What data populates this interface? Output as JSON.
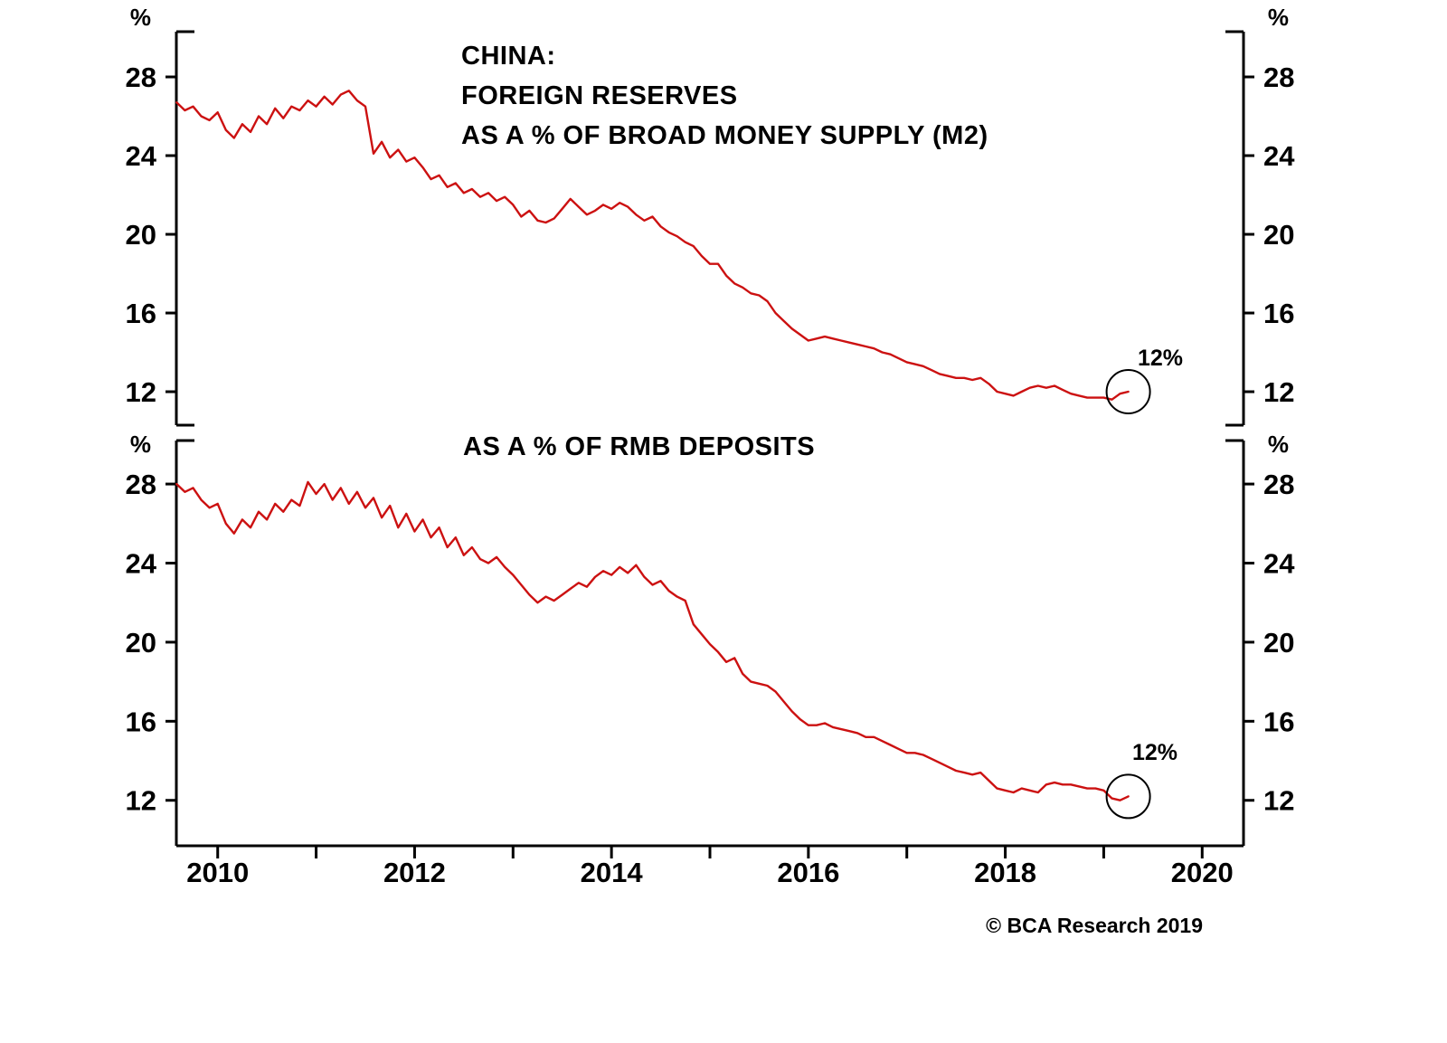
{
  "page": {
    "background": "#ffffff"
  },
  "footer": {
    "copyright": "© BCA Research 2019"
  },
  "chart_data": [
    {
      "type": "line",
      "panel": "top",
      "title_lines": [
        "CHINA:",
        "FOREIGN RESERVES",
        "AS A % OF BROAD MONEY SUPPLY (M2)"
      ],
      "unit": "%",
      "line_color": "#cc1111",
      "ylim": [
        10.3,
        30.3
      ],
      "yticks": [
        12,
        16,
        20,
        24,
        28
      ],
      "xlim": [
        2009.58,
        2020.42
      ],
      "xticks": [
        2010,
        2012,
        2014,
        2016,
        2018,
        2020
      ],
      "grid": false,
      "annotation": {
        "text": "12%"
      },
      "end_circle": {
        "x": 2019.25,
        "y": 12.0
      },
      "x_start": 2009.583,
      "x_step": 0.083333,
      "values": [
        26.7,
        26.3,
        26.5,
        26.0,
        25.8,
        26.2,
        25.3,
        24.9,
        25.6,
        25.2,
        26.0,
        25.6,
        26.4,
        25.9,
        26.5,
        26.3,
        26.8,
        26.5,
        27.0,
        26.6,
        27.1,
        27.3,
        26.8,
        26.5,
        24.1,
        24.7,
        23.9,
        24.3,
        23.7,
        23.9,
        23.4,
        22.8,
        23.0,
        22.4,
        22.6,
        22.1,
        22.3,
        21.9,
        22.1,
        21.7,
        21.9,
        21.5,
        20.9,
        21.2,
        20.7,
        20.6,
        20.8,
        21.3,
        21.8,
        21.4,
        21.0,
        21.2,
        21.5,
        21.3,
        21.6,
        21.4,
        21.0,
        20.7,
        20.9,
        20.4,
        20.1,
        19.9,
        19.6,
        19.4,
        18.9,
        18.5,
        18.5,
        17.9,
        17.5,
        17.3,
        17.0,
        16.9,
        16.6,
        16.0,
        15.6,
        15.2,
        14.9,
        14.6,
        14.7,
        14.8,
        14.7,
        14.6,
        14.5,
        14.4,
        14.3,
        14.2,
        14.0,
        13.9,
        13.7,
        13.5,
        13.4,
        13.3,
        13.1,
        12.9,
        12.8,
        12.7,
        12.7,
        12.6,
        12.7,
        12.4,
        12.0,
        11.9,
        11.8,
        12.0,
        12.2,
        12.3,
        12.2,
        12.3,
        12.1,
        11.9,
        11.8,
        11.7,
        11.7,
        11.7,
        11.6,
        11.9,
        12.0
      ]
    },
    {
      "type": "line",
      "panel": "bottom",
      "title_lines": [
        "AS A % OF RMB DEPOSITS"
      ],
      "unit": "%",
      "line_color": "#cc1111",
      "ylim": [
        9.7,
        30.2
      ],
      "yticks": [
        12,
        16,
        20,
        24,
        28
      ],
      "xlim": [
        2009.58,
        2020.42
      ],
      "xticks": [
        2010,
        2012,
        2014,
        2016,
        2018,
        2020
      ],
      "grid": false,
      "annotation": {
        "text": "12%"
      },
      "end_circle": {
        "x": 2019.25,
        "y": 12.2
      },
      "x_start": 2009.583,
      "x_step": 0.083333,
      "values": [
        28.0,
        27.6,
        27.8,
        27.2,
        26.8,
        27.0,
        26.0,
        25.5,
        26.2,
        25.8,
        26.6,
        26.2,
        27.0,
        26.6,
        27.2,
        26.9,
        28.1,
        27.5,
        28.0,
        27.2,
        27.8,
        27.0,
        27.6,
        26.8,
        27.3,
        26.3,
        26.9,
        25.8,
        26.5,
        25.6,
        26.2,
        25.3,
        25.8,
        24.8,
        25.3,
        24.4,
        24.8,
        24.2,
        24.0,
        24.3,
        23.8,
        23.4,
        22.9,
        22.4,
        22.0,
        22.3,
        22.1,
        22.4,
        22.7,
        23.0,
        22.8,
        23.3,
        23.6,
        23.4,
        23.8,
        23.5,
        23.9,
        23.3,
        22.9,
        23.1,
        22.6,
        22.3,
        22.1,
        20.9,
        20.4,
        19.9,
        19.5,
        19.0,
        19.2,
        18.4,
        18.0,
        17.9,
        17.8,
        17.5,
        17.0,
        16.5,
        16.1,
        15.8,
        15.8,
        15.9,
        15.7,
        15.6,
        15.5,
        15.4,
        15.2,
        15.2,
        15.0,
        14.8,
        14.6,
        14.4,
        14.4,
        14.3,
        14.1,
        13.9,
        13.7,
        13.5,
        13.4,
        13.3,
        13.4,
        13.0,
        12.6,
        12.5,
        12.4,
        12.6,
        12.5,
        12.4,
        12.8,
        12.9,
        12.8,
        12.8,
        12.7,
        12.6,
        12.6,
        12.5,
        12.1,
        12.0,
        12.2
      ]
    }
  ]
}
